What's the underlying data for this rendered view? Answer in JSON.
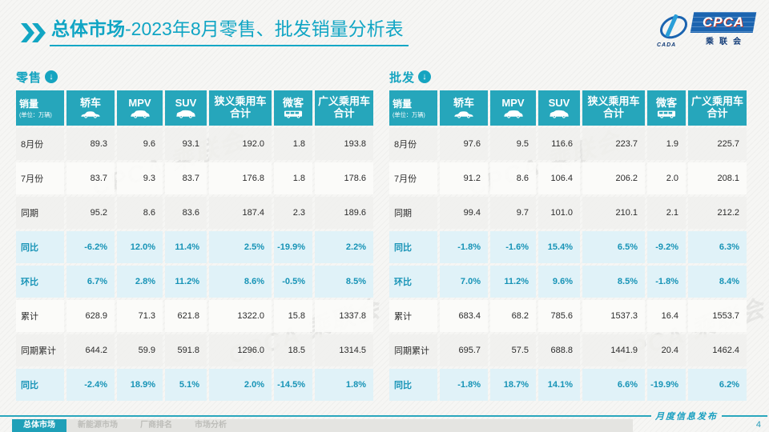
{
  "header": {
    "title_bold": "总体市场",
    "title_rest": "-2023年8月零售、批发销量分析表",
    "logo": {
      "main": "CPCA",
      "sub": "乘联会",
      "swoosh_text": "CADA"
    }
  },
  "watermark_text": "CPCA 乘联会",
  "colors": {
    "accent_teal": "#16a4c0",
    "header_cell": "#26a6bb",
    "highlight_row_bg": "#e0f2f8",
    "highlight_text": "#1693b6",
    "logo_blue": "#1b64b0"
  },
  "tables": [
    {
      "label": "零售",
      "unit_title": "销量",
      "unit_sub": "(单位：万辆)",
      "columns": [
        {
          "label": "轿车",
          "icon": "sedan-icon"
        },
        {
          "label": "MPV",
          "icon": "mpv-icon"
        },
        {
          "label": "SUV",
          "icon": "suv-icon"
        },
        {
          "label": "狭义乘用车",
          "label2": "合计"
        },
        {
          "label": "微客",
          "icon": "microvan-icon"
        },
        {
          "label": "广义乘用车",
          "label2": "合计"
        }
      ],
      "rows": [
        {
          "label": "8月份",
          "highlight": false,
          "values": [
            "89.3",
            "9.6",
            "93.1",
            "192.0",
            "1.8",
            "193.8"
          ]
        },
        {
          "label": "7月份",
          "highlight": false,
          "values": [
            "83.7",
            "9.3",
            "83.7",
            "176.8",
            "1.8",
            "178.6"
          ]
        },
        {
          "label": "同期",
          "highlight": false,
          "values": [
            "95.2",
            "8.6",
            "83.6",
            "187.4",
            "2.3",
            "189.6"
          ]
        },
        {
          "label": "同比",
          "highlight": true,
          "values": [
            "-6.2%",
            "12.0%",
            "11.4%",
            "2.5%",
            "-19.9%",
            "2.2%"
          ]
        },
        {
          "label": "环比",
          "highlight": true,
          "values": [
            "6.7%",
            "2.8%",
            "11.2%",
            "8.6%",
            "-0.5%",
            "8.5%"
          ]
        },
        {
          "label": "累计",
          "highlight": false,
          "values": [
            "628.9",
            "71.3",
            "621.8",
            "1322.0",
            "15.8",
            "1337.8"
          ]
        },
        {
          "label": "同期累计",
          "highlight": false,
          "values": [
            "644.2",
            "59.9",
            "591.8",
            "1296.0",
            "18.5",
            "1314.5"
          ]
        },
        {
          "label": "同比",
          "highlight": true,
          "values": [
            "-2.4%",
            "18.9%",
            "5.1%",
            "2.0%",
            "-14.5%",
            "1.8%"
          ]
        }
      ]
    },
    {
      "label": "批发",
      "unit_title": "销量",
      "unit_sub": "(单位：万辆)",
      "columns": [
        {
          "label": "轿车",
          "icon": "sedan-icon"
        },
        {
          "label": "MPV",
          "icon": "mpv-icon"
        },
        {
          "label": "SUV",
          "icon": "suv-icon"
        },
        {
          "label": "狭义乘用车",
          "label2": "合计"
        },
        {
          "label": "微客",
          "icon": "microvan-icon"
        },
        {
          "label": "广义乘用车",
          "label2": "合计"
        }
      ],
      "rows": [
        {
          "label": "8月份",
          "highlight": false,
          "values": [
            "97.6",
            "9.5",
            "116.6",
            "223.7",
            "1.9",
            "225.7"
          ]
        },
        {
          "label": "7月份",
          "highlight": false,
          "values": [
            "91.2",
            "8.6",
            "106.4",
            "206.2",
            "2.0",
            "208.1"
          ]
        },
        {
          "label": "同期",
          "highlight": false,
          "values": [
            "99.4",
            "9.7",
            "101.0",
            "210.1",
            "2.1",
            "212.2"
          ]
        },
        {
          "label": "同比",
          "highlight": true,
          "values": [
            "-1.8%",
            "-1.6%",
            "15.4%",
            "6.5%",
            "-9.2%",
            "6.3%"
          ]
        },
        {
          "label": "环比",
          "highlight": true,
          "values": [
            "7.0%",
            "11.2%",
            "9.6%",
            "8.5%",
            "-1.8%",
            "8.4%"
          ]
        },
        {
          "label": "累计",
          "highlight": false,
          "values": [
            "683.4",
            "68.2",
            "785.6",
            "1537.3",
            "16.4",
            "1553.7"
          ]
        },
        {
          "label": "同期累计",
          "highlight": false,
          "values": [
            "695.7",
            "57.5",
            "688.8",
            "1441.9",
            "20.4",
            "1462.4"
          ]
        },
        {
          "label": "同比",
          "highlight": true,
          "values": [
            "-1.8%",
            "18.7%",
            "14.1%",
            "6.6%",
            "-19.9%",
            "6.2%"
          ]
        }
      ]
    }
  ],
  "footer": {
    "tabs": [
      {
        "label": "总体市场",
        "active": true
      },
      {
        "label": "新能源市场",
        "active": false
      },
      {
        "label": "厂商排名",
        "active": false
      },
      {
        "label": "市场分析",
        "active": false
      }
    ],
    "release_note": "月度信息发布",
    "page_number": "4"
  }
}
